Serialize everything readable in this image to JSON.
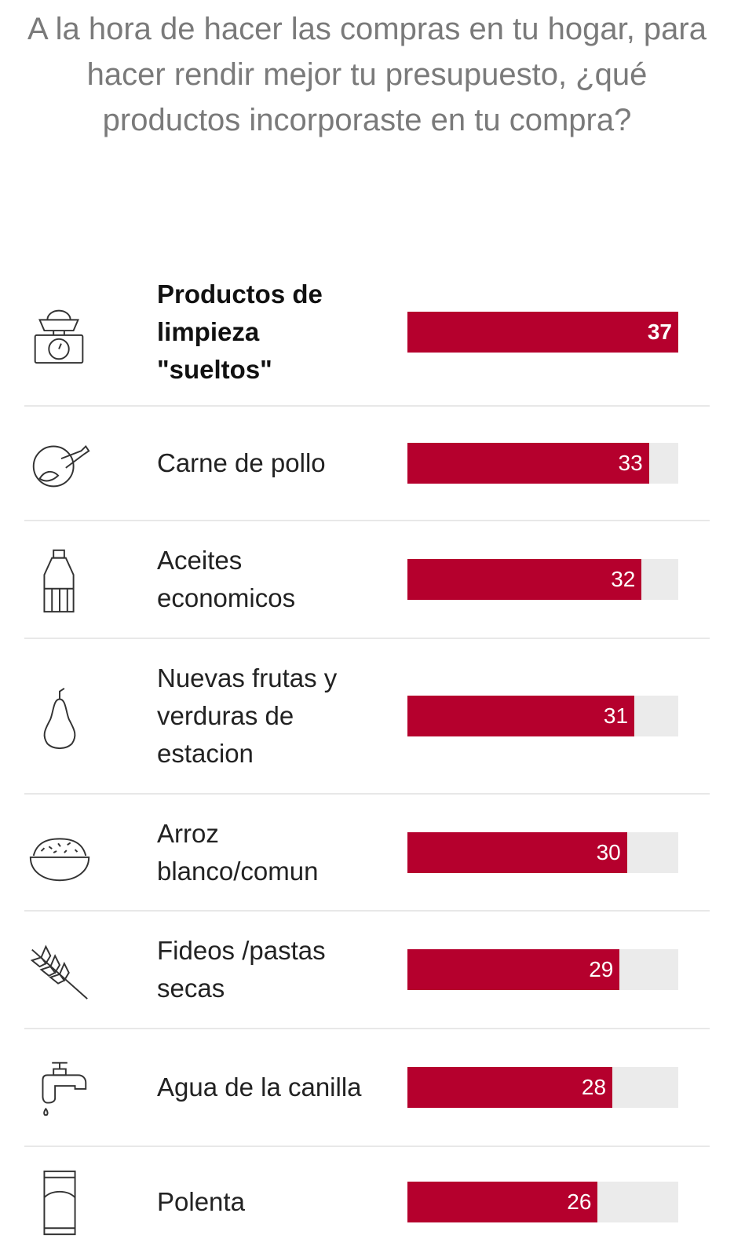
{
  "title": "A la hora de hacer las compras en tu hogar, para hacer rendir mejor tu presupuesto, ¿qué productos incorporaste en tu compra?",
  "colors": {
    "bar": "#b5002d",
    "track": "#ebebeb",
    "title": "#7a7a7a"
  },
  "chart_data": {
    "type": "bar",
    "orientation": "horizontal",
    "title": "A la hora de hacer las compras en tu hogar, para hacer rendir mejor tu presupuesto, ¿qué productos incorporaste en tu compra?",
    "categories": [
      "Productos de limpieza \"sueltos\"",
      "Carne de pollo",
      "Aceites economicos",
      "Nuevas frutas y verduras de estacion",
      "Arroz blanco/comun",
      "Fideos /pastas secas",
      "Agua de la canilla",
      "Polenta"
    ],
    "values": [
      37,
      33,
      32,
      31,
      30,
      29,
      28,
      26
    ],
    "icons": [
      "scale-icon",
      "chicken-icon",
      "oil-bottle-icon",
      "pear-icon",
      "rice-bowl-icon",
      "wheat-icon",
      "faucet-icon",
      "polenta-bag-icon"
    ],
    "xlim": [
      0,
      37
    ]
  }
}
